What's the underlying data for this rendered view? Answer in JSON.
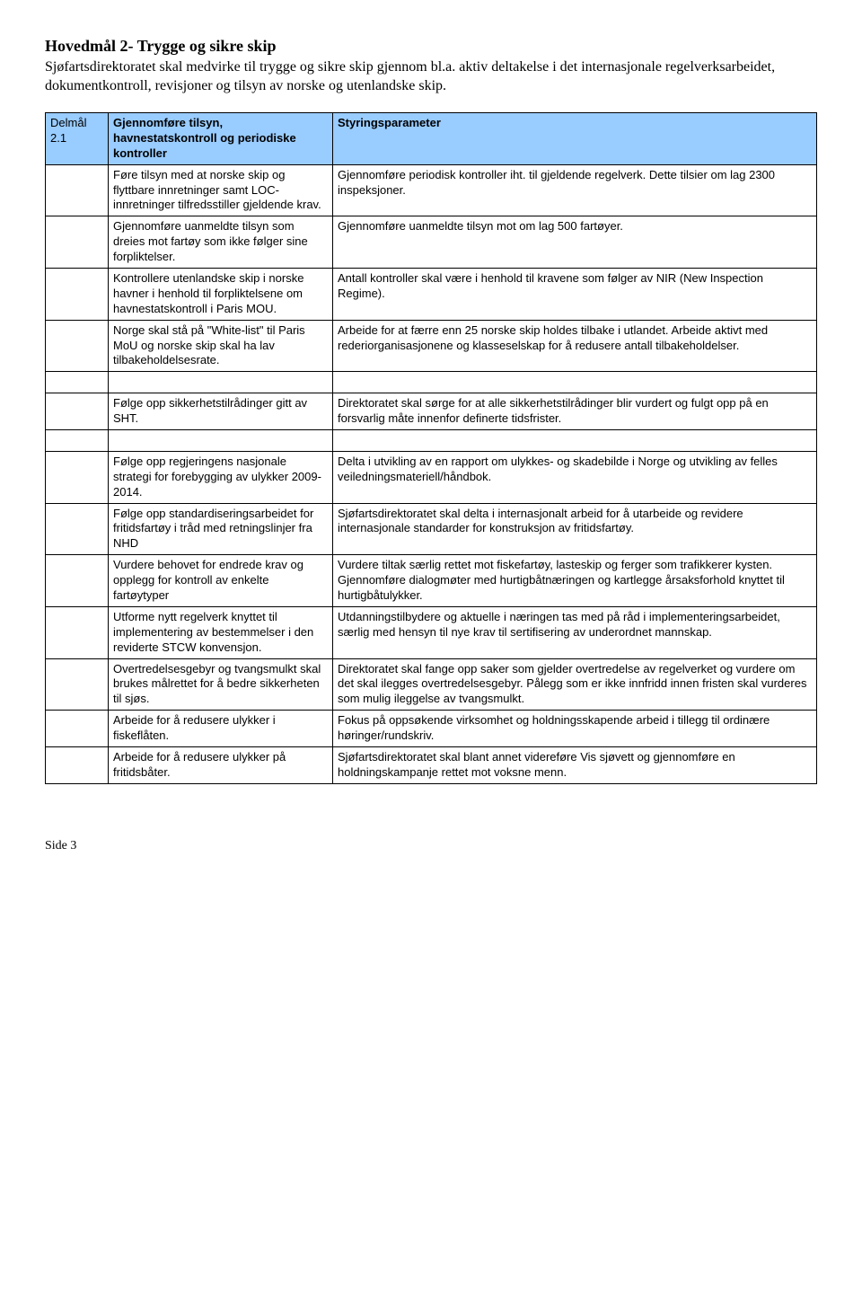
{
  "heading": "Hovedmål 2- Trygge og sikre skip",
  "intro": "Sjøfartsdirektoratet skal medvirke til trygge og sikre skip gjennom bl.a. aktiv deltakelse i det internasjonale regelverksarbeidet, dokumentkontroll, revisjoner og tilsyn av norske og utenlandske skip.",
  "header": {
    "label": "Delmål 2.1",
    "left": "Gjennomføre tilsyn, havnestatskontroll og periodiske kontroller",
    "right": "Styringsparameter"
  },
  "rows": [
    {
      "left": "Føre tilsyn med at norske skip og flyttbare innretninger samt LOC-innretninger tilfredsstiller gjeldende krav.",
      "right": "Gjennomføre periodisk kontroller iht. til gjeldende regelverk. Dette tilsier om lag 2300 inspeksjoner."
    },
    {
      "left": "Gjennomføre uanmeldte tilsyn som dreies mot fartøy som ikke følger sine forpliktelser.",
      "right": "Gjennomføre uanmeldte tilsyn mot om lag 500 fartøyer."
    },
    {
      "left": "Kontrollere utenlandske skip i norske havner i henhold til forpliktelsene om havnestatskontroll i Paris MOU.",
      "right": "Antall kontroller skal være i henhold til kravene som følger av NIR (New Inspection Regime)."
    },
    {
      "left": "Norge skal stå på \"White-list\" til Paris MoU og norske skip skal ha lav tilbakeholdelsesrate.",
      "right": "Arbeide for at færre enn 25 norske skip holdes tilbake i utlandet. Arbeide aktivt med rederiorganisasjonene og klasseselskap for å redusere antall tilbakeholdelser."
    },
    {
      "spacer": true
    },
    {
      "left": "Følge opp sikkerhetstilrådinger gitt av SHT.",
      "right": "Direktoratet skal sørge for at alle sikkerhetstilrådinger blir vurdert og fulgt opp på en forsvarlig måte innenfor definerte tidsfrister."
    },
    {
      "spacer": true
    },
    {
      "left": "Følge opp regjeringens nasjonale strategi for forebygging av ulykker 2009-2014.",
      "right": "Delta i utvikling av en rapport om ulykkes- og skadebilde i Norge og utvikling av felles veiledningsmateriell/håndbok."
    },
    {
      "left": "Følge opp standardiseringsarbeidet for fritidsfartøy i tråd med retningslinjer fra NHD",
      "right": "Sjøfartsdirektoratet skal delta i internasjonalt arbeid for å utarbeide og revidere internasjonale standarder for konstruksjon av fritidsfartøy."
    },
    {
      "left": "Vurdere behovet for endrede krav og opplegg for kontroll av enkelte fartøytyper",
      "right": "Vurdere tiltak særlig rettet mot fiskefartøy, lasteskip og ferger som trafikkerer kysten. Gjennomføre dialogmøter med hurtigbåtnæringen og kartlegge årsaksforhold knyttet til hurtigbåtulykker."
    },
    {
      "left": "Utforme nytt regelverk knyttet til implementering av bestemmelser i den reviderte STCW konvensjon.",
      "right": "Utdanningstilbydere og aktuelle i næringen tas med på råd i implementeringsarbeidet, særlig med hensyn til nye krav til sertifisering av underordnet mannskap."
    },
    {
      "left": "Overtredelsesgebyr og tvangsmulkt skal brukes målrettet for å bedre sikkerheten til sjøs.",
      "right": "Direktoratet skal fange opp saker som gjelder overtredelse av regelverket og vurdere om det skal ilegges overtredelsesgebyr. Pålegg som er ikke innfridd innen fristen skal vurderes som mulig ileggelse av tvangsmulkt."
    },
    {
      "left": "Arbeide for å redusere ulykker i fiskeflåten.",
      "right": "Fokus på oppsøkende virksomhet og holdningsskapende arbeid i tillegg til ordinære høringer/rundskriv."
    },
    {
      "left": "Arbeide for å redusere ulykker på fritidsbåter.",
      "right": "Sjøfartsdirektoratet skal blant annet videreføre Vis sjøvett og gjennomføre en holdningskampanje rettet mot voksne menn."
    }
  ],
  "footer": "Side 3",
  "style": {
    "heading_font": "Times New Roman",
    "body_font": "Arial",
    "header_bg": "#99ccff",
    "border_color": "#000000",
    "page_bg": "#ffffff"
  }
}
